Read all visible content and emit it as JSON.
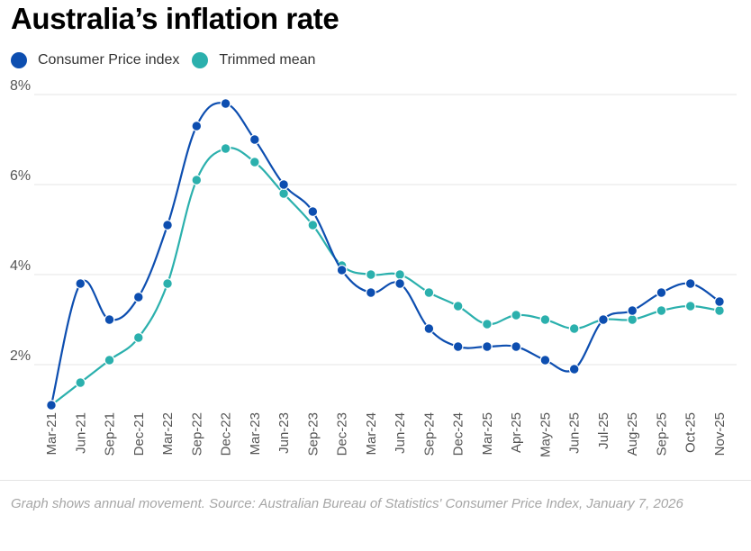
{
  "title": "Australia’s inflation rate",
  "legend": [
    {
      "label": "Consumer Price index",
      "color": "#0d4eb0"
    },
    {
      "label": "Trimmed mean",
      "color": "#2bb0ad"
    }
  ],
  "footnote": "Graph shows annual movement. Source:  Australian Bureau of Statistics' Consumer Price Index, January 7, 2026",
  "chart_data": {
    "type": "line",
    "title": "Australia’s inflation rate",
    "xlabel": "",
    "ylabel": "",
    "ylim": [
      1.0,
      8.0
    ],
    "yticks": [
      2,
      4,
      6,
      8
    ],
    "ytick_labels": [
      "2%",
      "4%",
      "6%",
      "8%"
    ],
    "grid": true,
    "legend_position": "top-left",
    "categories": [
      "Mar-21",
      "Jun-21",
      "Sep-21",
      "Dec-21",
      "Mar-22",
      "Sep-22",
      "Dec-22",
      "Mar-23",
      "Jun-23",
      "Sep-23",
      "Dec-23",
      "Mar-24",
      "Jun-24",
      "Sep-24",
      "Dec-24",
      "Mar-25",
      "Apr-25",
      "May-25",
      "Jun-25",
      "Jul-25",
      "Aug-25",
      "Sep-25",
      "Oct-25",
      "Nov-25"
    ],
    "series": [
      {
        "name": "Consumer Price index",
        "color": "#0d4eb0",
        "values": [
          1.1,
          3.8,
          3.0,
          3.5,
          5.1,
          7.3,
          7.8,
          7.0,
          6.0,
          5.4,
          4.1,
          3.6,
          3.8,
          2.8,
          2.4,
          2.4,
          2.4,
          2.1,
          1.9,
          3.0,
          3.2,
          3.6,
          3.8,
          3.4
        ]
      },
      {
        "name": "Trimmed mean",
        "color": "#2bb0ad",
        "values": [
          1.1,
          1.6,
          2.1,
          2.6,
          3.8,
          6.1,
          6.8,
          6.5,
          5.8,
          5.1,
          4.2,
          4.0,
          4.0,
          3.6,
          3.3,
          2.9,
          3.1,
          3.0,
          2.8,
          3.0,
          3.0,
          3.2,
          3.3,
          3.2
        ]
      }
    ]
  }
}
